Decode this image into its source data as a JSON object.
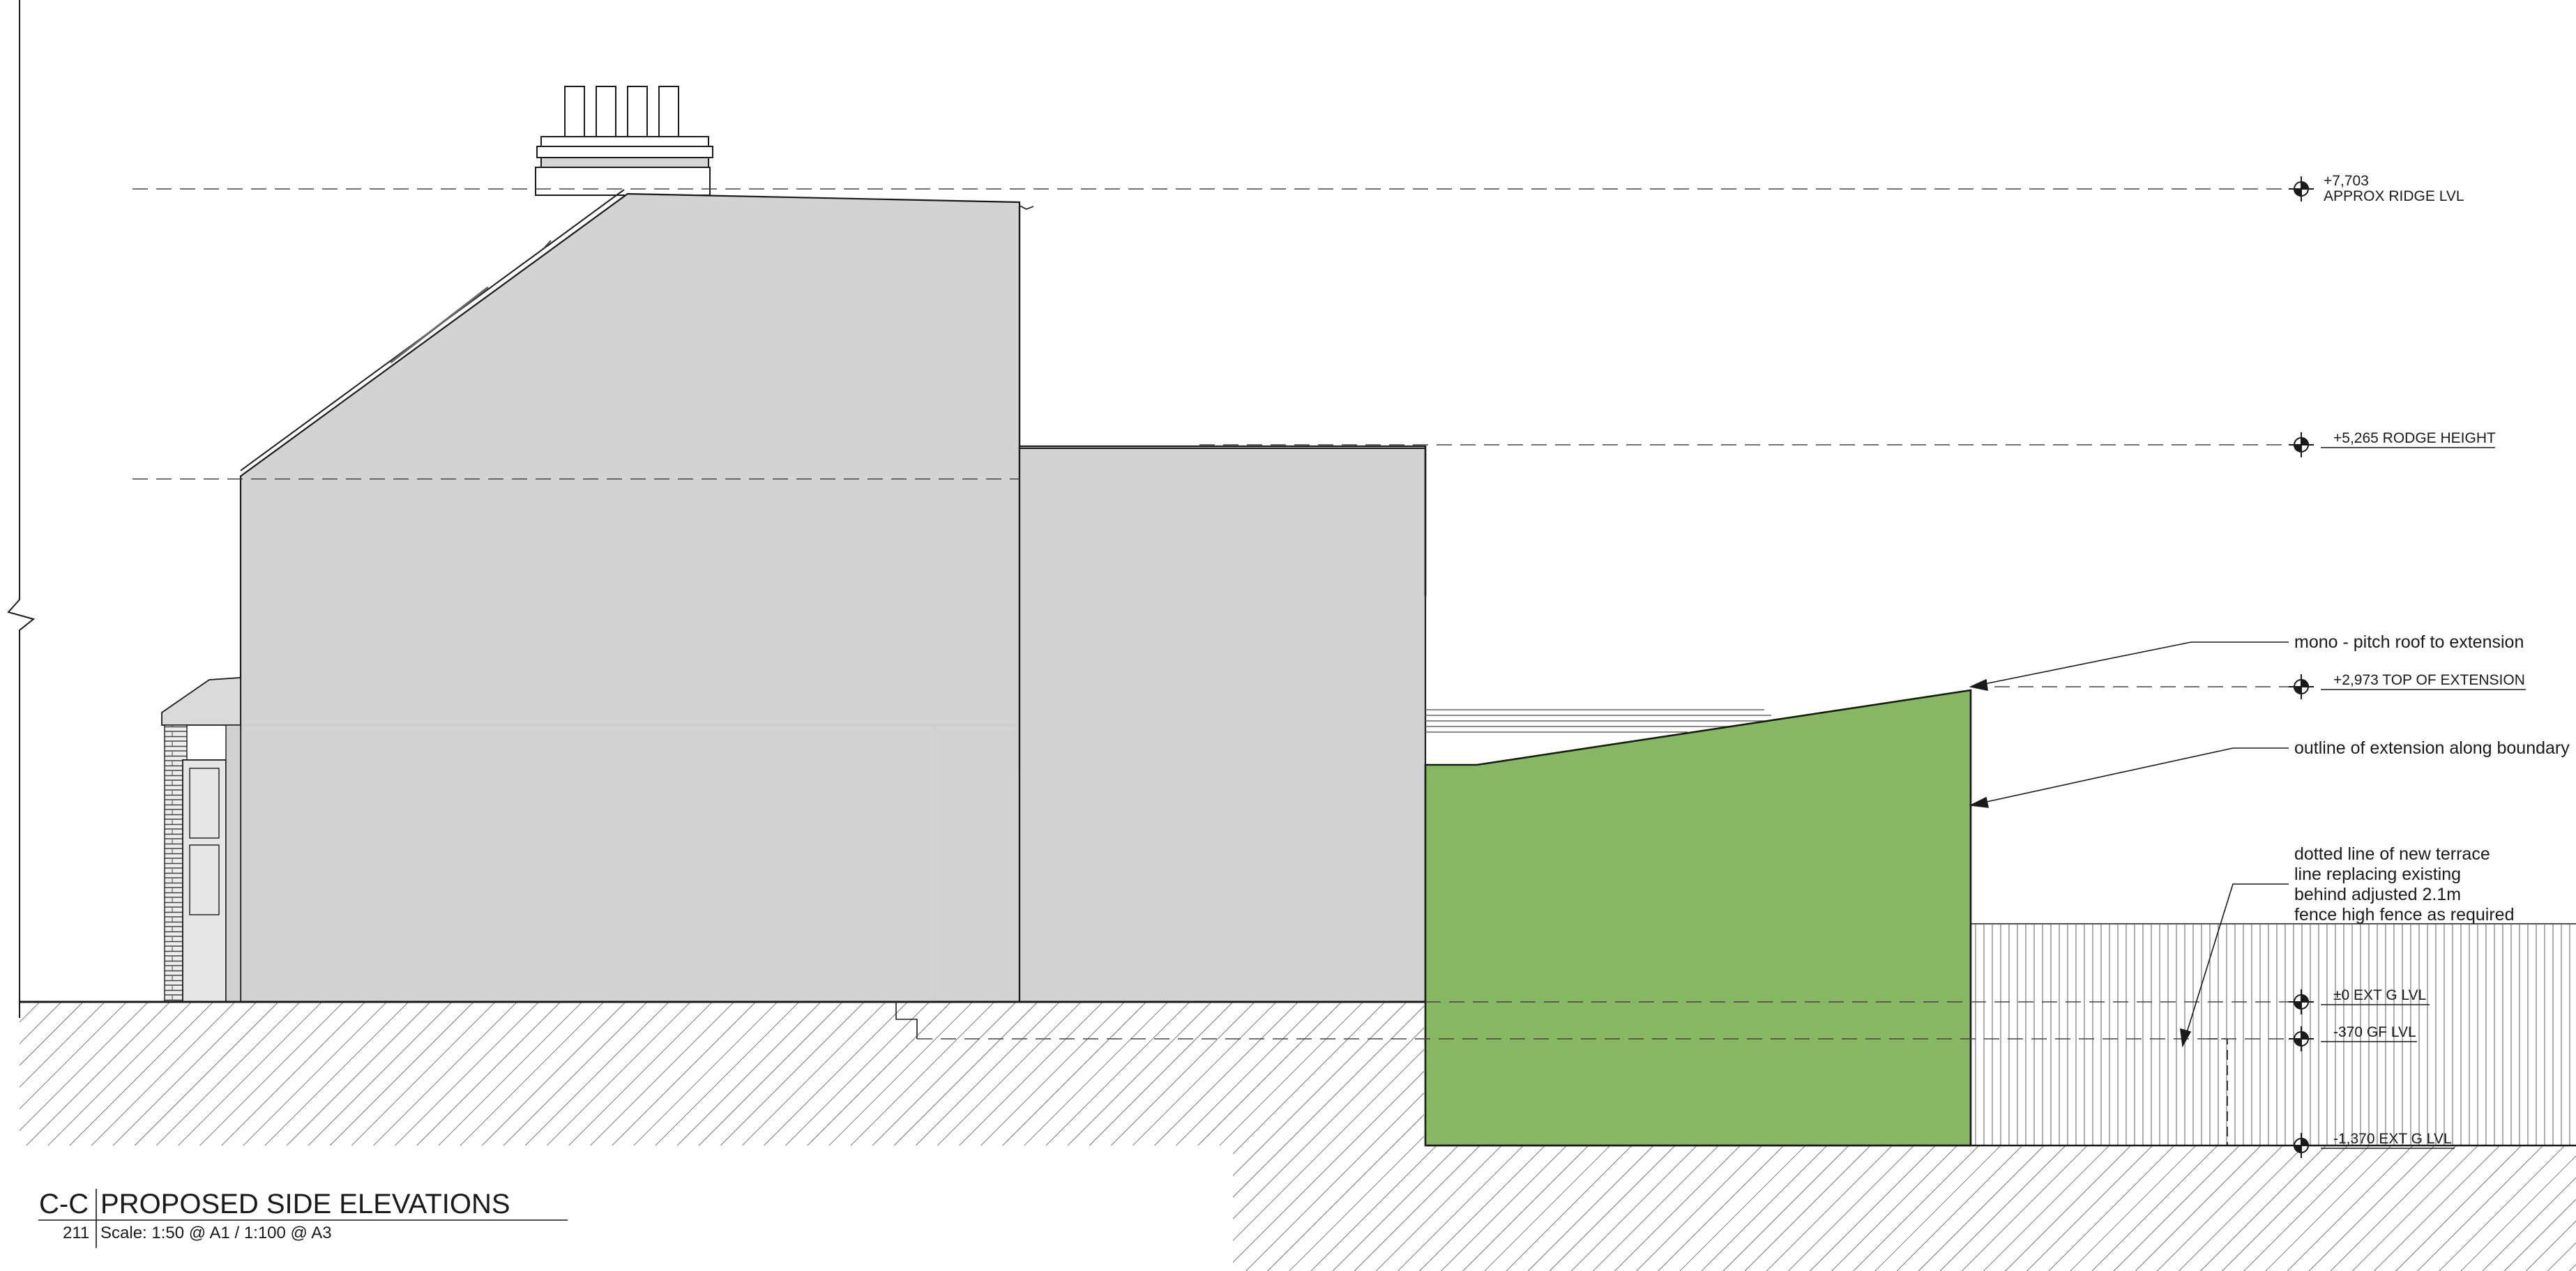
{
  "drawing": {
    "fill_colors": {
      "house": "#d3d3d3",
      "extension": "#88b764",
      "line": "#1a1a1a"
    },
    "levels": [
      {
        "id": "ridge",
        "value": "+7,703",
        "name": "APPROX RIDGE LVL"
      },
      {
        "id": "rodge",
        "value": "+5,265 RODGE HEIGHT"
      },
      {
        "id": "extension-top",
        "value": "+2,973 TOP OF EXTENSION"
      },
      {
        "id": "ext-ground",
        "value": "±0 EXT G LVL"
      },
      {
        "id": "gf",
        "value": "-370 GF LVL"
      },
      {
        "id": "ext-ground-low",
        "value": "-1,370 EXT G LVL"
      }
    ],
    "annotations": {
      "mono_pitch": "mono - pitch roof to extension",
      "outline": "outline of extension along boundary",
      "terrace": [
        "dotted line of new terrace",
        "line replacing existing",
        "behind adjusted 2.1m",
        "fence high fence as required"
      ]
    },
    "title_block": {
      "code": "C-C",
      "title": "PROPOSED SIDE ELEVATIONS",
      "number": "211",
      "scale": "Scale: 1:50 @ A1 / 1:100 @ A3"
    }
  }
}
